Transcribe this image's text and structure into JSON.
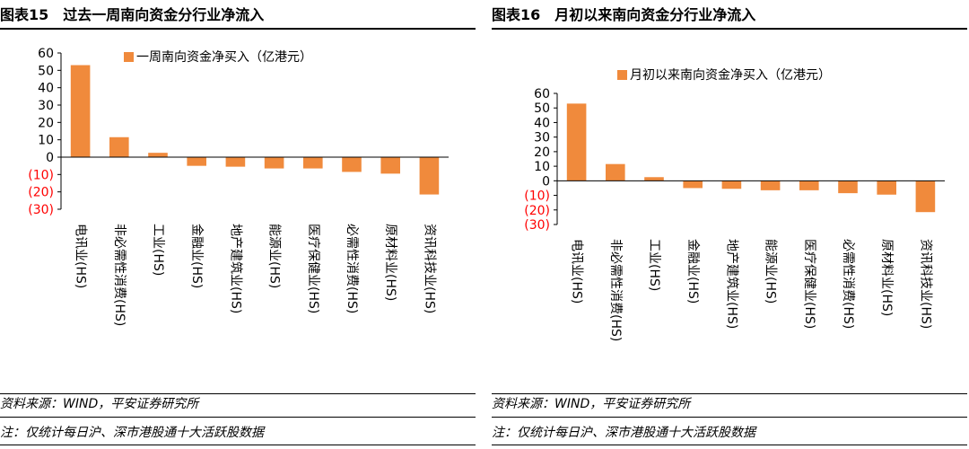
{
  "colors": {
    "bar": "#F08A3C",
    "negative_label": "#FF0000",
    "axis": "#000000"
  },
  "charts": [
    {
      "figure_label": "图表15",
      "title": "过去一周南向资金分行业净流入",
      "source": "资料来源：WIND，平安证券研究所",
      "note": "注：仅统计每日沪、深市港股通十大活跃股数据"
    },
    {
      "figure_label": "图表16",
      "title": "月初以来南向资金分行业净流入",
      "source": "资料来源：WIND，平安证券研究所",
      "note": "注：仅统计每日沪、深市港股通十大活跃股数据"
    }
  ],
  "chart_data": [
    {
      "type": "bar",
      "title": "过去一周南向资金分行业净流入",
      "legend": "一周南向资金净买入（亿港元）",
      "legend_position": "top-right",
      "categories": [
        "电讯业(HS)",
        "非必需性消费(HS)",
        "工业(HS)",
        "金融业(HS)",
        "地产建筑业(HS)",
        "能源业(HS)",
        "医疗保健业(HS)",
        "必需性消费(HS)",
        "原材料业(HS)",
        "资讯科技业(HS)"
      ],
      "values": [
        53,
        11.5,
        2.5,
        -5,
        -5.5,
        -6.5,
        -6.5,
        -8.5,
        -9.5,
        -21.5
      ],
      "ylim": [
        -30,
        60
      ],
      "yticks": [
        60,
        50,
        40,
        30,
        20,
        10,
        0,
        -10,
        -20,
        -30
      ],
      "ytick_labels": [
        "60",
        "50",
        "40",
        "30",
        "20",
        "10",
        "0",
        "(10)",
        "(20)",
        "(30)"
      ],
      "xlabel": "",
      "ylabel": "",
      "grid": false
    },
    {
      "type": "bar",
      "title": "月初以来南向资金分行业净流入",
      "legend": "月初以来南向资金净买入（亿港元）",
      "legend_position": "top-right",
      "categories": [
        "电讯业(HS)",
        "非必需性消费(HS)",
        "工业(HS)",
        "金融业(HS)",
        "地产建筑业(HS)",
        "能源业(HS)",
        "医疗保健业(HS)",
        "必需性消费(HS)",
        "原材料业(HS)",
        "资讯科技业(HS)"
      ],
      "values": [
        53,
        11.5,
        2.5,
        -5,
        -5.5,
        -6.5,
        -6.5,
        -8.5,
        -9.5,
        -21.5
      ],
      "ylim": [
        -30,
        60
      ],
      "yticks": [
        60,
        50,
        40,
        30,
        20,
        10,
        0,
        -10,
        -20,
        -30
      ],
      "ytick_labels": [
        "60",
        "50",
        "40",
        "30",
        "20",
        "10",
        "0",
        "(10)",
        "(20)",
        "(30)"
      ],
      "xlabel": "",
      "ylabel": "",
      "grid": false
    }
  ]
}
